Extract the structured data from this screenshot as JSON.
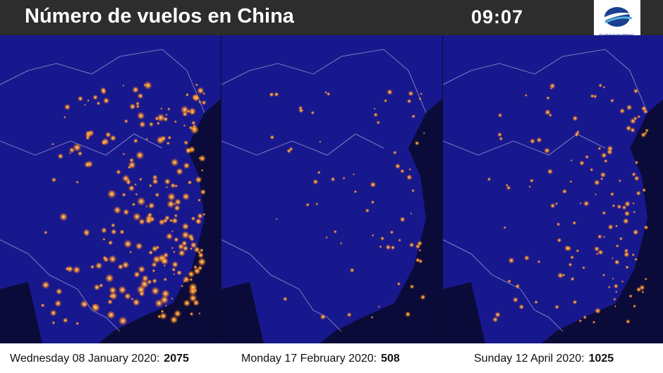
{
  "header": {
    "title": "Número de vuelos en China",
    "clock": "09:07",
    "logo": "EUROCONTROL"
  },
  "panels": [
    {
      "date": "Wednesday 08 January 2020:",
      "flights": "2075"
    },
    {
      "date": "Monday 17 February 2020:",
      "flights": "508"
    },
    {
      "date": "Sunday 12 April 2020:",
      "flights": "1025"
    }
  ]
}
